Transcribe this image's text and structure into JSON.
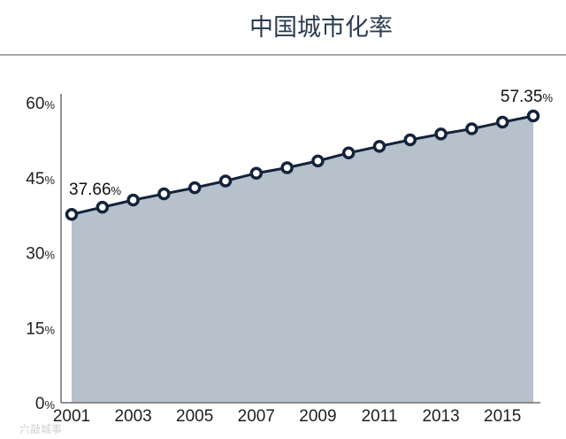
{
  "page": {
    "title": "中国城市化率",
    "watermark": "六敲城事"
  },
  "colors": {
    "title": "#2c3b4f",
    "divider": "#a9a9a9",
    "area_fill": "#b7c1cb",
    "line": "#13233a",
    "marker_fill": "#ffffff",
    "marker_stroke": "#13233a",
    "axis": "#6f6f6f"
  },
  "chart_data": {
    "type": "area",
    "title": "中国城市化率",
    "x": [
      2001,
      2002,
      2003,
      2004,
      2005,
      2006,
      2007,
      2008,
      2009,
      2010,
      2011,
      2012,
      2013,
      2014,
      2015,
      2016
    ],
    "series": [
      {
        "values": [
          37.66,
          39.09,
          40.53,
          41.76,
          42.99,
          44.34,
          45.89,
          46.99,
          48.34,
          49.95,
          51.27,
          52.57,
          53.73,
          54.77,
          56.1,
          57.35
        ]
      }
    ],
    "xlim": [
      2001,
      2016
    ],
    "ylim": [
      0,
      60
    ],
    "yticks": [
      0,
      15,
      30,
      45,
      60
    ],
    "ytick_labels": [
      "0%",
      "15%",
      "30%",
      "45%",
      "60%"
    ],
    "xticks": [
      2001,
      2003,
      2005,
      2007,
      2009,
      2011,
      2013,
      2015
    ],
    "xtick_labels": [
      "2001",
      "2003",
      "2005",
      "2007",
      "2009",
      "2011",
      "2013",
      "2015"
    ],
    "annotations": [
      {
        "index": 0,
        "text": "37.66%"
      },
      {
        "index": 15,
        "text": "57.35%"
      }
    ],
    "grid": false,
    "legend": "none"
  }
}
